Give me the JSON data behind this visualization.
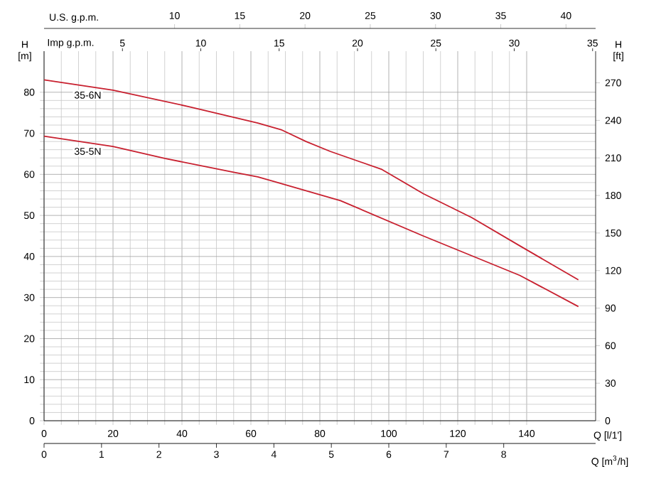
{
  "chart_data": {
    "type": "line",
    "xlabel": "Q [l/1']",
    "ylabel": "H [m]",
    "y2label": "H [ft]",
    "x2label": "U.S. g.p.m.",
    "xlim": [
      0,
      160
    ],
    "xticks": [
      0,
      20,
      40,
      60,
      80,
      100,
      120,
      140
    ],
    "ylim": [
      0,
      90
    ],
    "yticks": [
      0,
      10,
      20,
      30,
      40,
      50,
      60,
      70,
      80
    ],
    "y2lim": [
      0,
      295.3
    ],
    "y2ticks": [
      0,
      30,
      60,
      90,
      120,
      150,
      180,
      210,
      240,
      270
    ],
    "x2lim": [
      0,
      42.27
    ],
    "x2ticks": [
      10,
      15,
      20,
      25,
      30,
      35,
      40
    ],
    "grid": true,
    "marker": "none",
    "line_style": "solid",
    "series": [
      {
        "name": "35-6N",
        "color": "#c8202f",
        "x": [
          0,
          20,
          42,
          62,
          69,
          76,
          83,
          98,
          110,
          124,
          138,
          155
        ],
        "values": [
          83,
          80.5,
          76.5,
          72.5,
          70.8,
          68,
          65.6,
          61.2,
          55.3,
          49.5,
          42.6,
          34.3
        ]
      },
      {
        "name": "35-5N",
        "color": "#c8202f",
        "x": [
          0,
          20,
          35,
          55,
          62,
          86,
          110,
          138,
          155
        ],
        "values": [
          69.3,
          66.8,
          63.9,
          60.5,
          59.4,
          53.6,
          45,
          35.4,
          27.8
        ]
      }
    ],
    "annotations": [
      "Imp g.p.m.",
      "5",
      "10",
      "15",
      "20",
      "25",
      "30",
      "35",
      "Q [m$^{3}$/h]",
      "0",
      "1",
      "2",
      "3",
      "4",
      "5",
      "6",
      "7",
      "8"
    ]
  }
}
